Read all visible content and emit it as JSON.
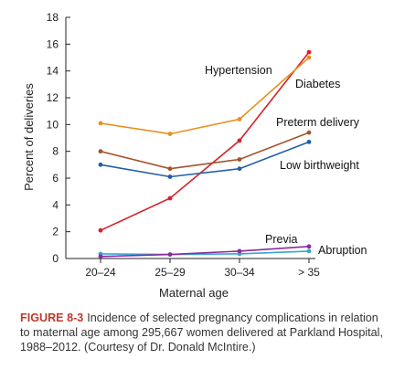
{
  "chart_data": {
    "type": "line",
    "categories": [
      "20–24",
      "25–29",
      "30–34",
      "> 35"
    ],
    "xlabel": "Maternal age",
    "ylabel": "Percent of deliveries",
    "ylim": [
      0,
      18
    ],
    "yticks": [
      0,
      2,
      4,
      6,
      8,
      10,
      12,
      14,
      16,
      18
    ],
    "grid": false,
    "series": [
      {
        "name": "Hypertension",
        "color": "#d6202a",
        "values": [
          2.1,
          4.5,
          8.8,
          15.4
        ]
      },
      {
        "name": "Diabetes",
        "color": "#e8901f",
        "values": [
          10.1,
          9.3,
          10.4,
          15.0
        ]
      },
      {
        "name": "Preterm delivery",
        "color": "#a3532a",
        "values": [
          8.0,
          6.7,
          7.4,
          9.4
        ]
      },
      {
        "name": "Low birthweight",
        "color": "#1f5fa8",
        "values": [
          7.0,
          6.1,
          6.7,
          8.7
        ]
      },
      {
        "name": "Previa",
        "color": "#35a7d6",
        "values": [
          0.35,
          0.3,
          0.35,
          0.55
        ]
      },
      {
        "name": "Abruption",
        "color": "#8e2a9c",
        "values": [
          0.15,
          0.3,
          0.55,
          0.9
        ]
      }
    ]
  },
  "caption": {
    "label": "FIGURE 8-3",
    "text": "Incidence of selected pregnancy complications in relation to maternal age among 295,667 women delivered at Parkland Hospital, 1988–2012. (Courtesy of Dr. Donald McIntire.)"
  }
}
